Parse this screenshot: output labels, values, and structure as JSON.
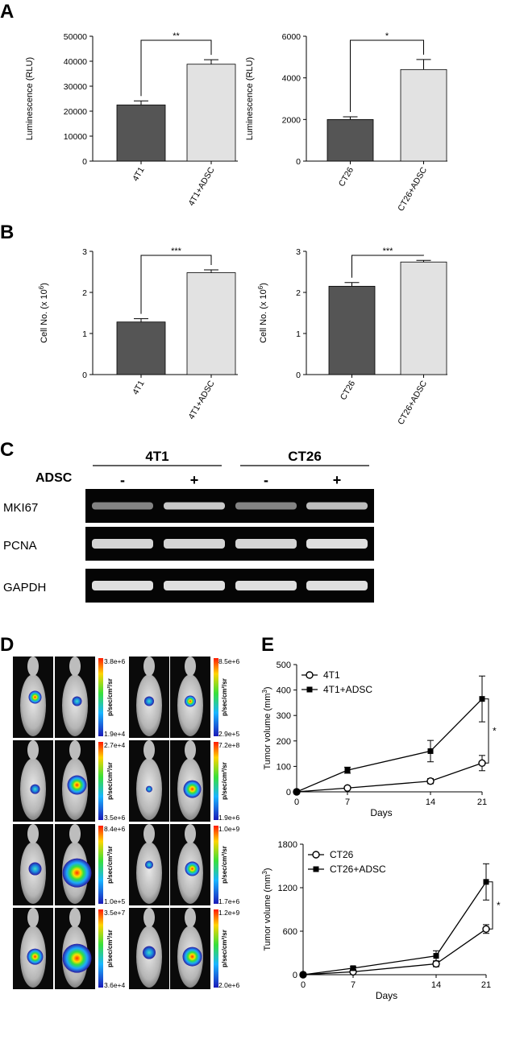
{
  "panel_labels": [
    "A",
    "B",
    "C",
    "D",
    "E"
  ],
  "chart_data": [
    {
      "id": "A1",
      "type": "bar",
      "categories": [
        "4T1",
        "4T1+ADSC"
      ],
      "values": [
        22500,
        38800
      ],
      "errors": [
        1600,
        1800
      ],
      "ylabel": "Luminescence (RLU)",
      "ylim": [
        0,
        50000
      ],
      "yticks": [
        "0",
        "10000",
        "20000",
        "30000",
        "40000",
        "50000"
      ],
      "sig": "**",
      "colors": [
        "#555555",
        "#e2e2e2"
      ]
    },
    {
      "id": "A2",
      "type": "bar",
      "categories": [
        "CT26",
        "CT26+ADSC"
      ],
      "values": [
        2000,
        4400
      ],
      "errors": [
        130,
        480
      ],
      "ylabel": "Luminescence (RLU)",
      "ylim": [
        0,
        6000
      ],
      "yticks": [
        "0",
        "2000",
        "4000",
        "6000"
      ],
      "sig": "*",
      "colors": [
        "#555555",
        "#e2e2e2"
      ]
    },
    {
      "id": "B1",
      "type": "bar",
      "categories": [
        "4T1",
        "4T1+ADSC"
      ],
      "values": [
        1.28,
        2.48
      ],
      "errors": [
        0.08,
        0.07
      ],
      "ylabel": "Cell No. (x 10",
      "ylabel_sup": "6",
      "ylabel_end": ")",
      "ylim": [
        0,
        3
      ],
      "yticks": [
        "0",
        "1",
        "2",
        "3"
      ],
      "sig": "***",
      "colors": [
        "#555555",
        "#e2e2e2"
      ]
    },
    {
      "id": "B2",
      "type": "bar",
      "categories": [
        "CT26",
        "CT26+ADSC"
      ],
      "values": [
        2.15,
        2.74
      ],
      "errors": [
        0.09,
        0.04
      ],
      "ylabel": "Cell No. (x 10",
      "ylabel_sup": "6",
      "ylabel_end": ")",
      "ylim": [
        0,
        3
      ],
      "yticks": [
        "0",
        "1",
        "2",
        "3"
      ],
      "sig": "***",
      "colors": [
        "#555555",
        "#e2e2e2"
      ]
    },
    {
      "id": "E1",
      "type": "line",
      "x": [
        0,
        7,
        14,
        21
      ],
      "xticks": [
        "0",
        "7",
        "14",
        "21"
      ],
      "xlabel": "Days",
      "ylabel": "Tumor volume (mm",
      "ylabel_sup": "3",
      "ylabel_end": ")",
      "ylim": [
        0,
        500
      ],
      "yticks": [
        "0",
        "100",
        "200",
        "300",
        "400",
        "500"
      ],
      "sig": "*",
      "series": [
        {
          "name": "4T1",
          "marker": "open-circle",
          "values": [
            0,
            15,
            42,
            113
          ],
          "errors": [
            0,
            4,
            10,
            30
          ]
        },
        {
          "name": "4T1+ADSC",
          "marker": "filled-square",
          "values": [
            0,
            85,
            160,
            365
          ],
          "errors": [
            0,
            12,
            42,
            90
          ]
        }
      ]
    },
    {
      "id": "E2",
      "type": "line",
      "x": [
        0,
        7,
        14,
        21
      ],
      "xticks": [
        "0",
        "7",
        "14",
        "21"
      ],
      "xlabel": "Days",
      "ylabel": "Tumor volume (mm",
      "ylabel_sup": "3",
      "ylabel_end": ")",
      "ylim": [
        0,
        1800
      ],
      "yticks": [
        "0",
        "600",
        "1200",
        "1800"
      ],
      "sig": "*",
      "series": [
        {
          "name": "CT26",
          "marker": "open-circle",
          "values": [
            0,
            40,
            150,
            630
          ],
          "errors": [
            0,
            10,
            40,
            60
          ]
        },
        {
          "name": "CT26+ADSC",
          "marker": "filled-square",
          "values": [
            0,
            90,
            260,
            1280
          ],
          "errors": [
            0,
            20,
            70,
            250
          ]
        }
      ]
    }
  ],
  "gel": {
    "group_labels": [
      "4T1",
      "CT26"
    ],
    "row_header": "ADSC",
    "lane_signs": [
      "-",
      "+",
      "-",
      "+"
    ],
    "bands": [
      {
        "name": "MKI67",
        "intensity": [
          0.55,
          0.85,
          0.55,
          0.8
        ]
      },
      {
        "name": "PCNA",
        "intensity": [
          0.9,
          0.9,
          0.9,
          0.95
        ]
      },
      {
        "name": "GAPDH",
        "intensity": [
          0.95,
          0.95,
          0.95,
          0.95
        ]
      }
    ]
  },
  "imaging": {
    "unit": "p/sec/cm²/sr",
    "rows": [
      {
        "left": {
          "max": "3.8e+6",
          "min": "1.9e+4"
        },
        "right": {
          "max": "8.5e+6",
          "min": "2.9e+5"
        }
      },
      {
        "left": {
          "max": "2.7e+4",
          "min": "3.5e+6"
        },
        "right": {
          "max": "7.2e+8",
          "min": "1.9e+6"
        }
      },
      {
        "left": {
          "max": "8.4e+6",
          "min": "1.0e+5"
        },
        "right": {
          "max": "1.0e+9",
          "min": "1.7e+6"
        }
      },
      {
        "left": {
          "max": "3.5e+7",
          "min": "3.6e+4"
        },
        "right": {
          "max": "1.2e+9",
          "min": "2.0e+6"
        }
      }
    ]
  },
  "colors": {
    "bar_dark": "#555555",
    "bar_light": "#e2e2e2",
    "gel_bg": "#050505"
  }
}
